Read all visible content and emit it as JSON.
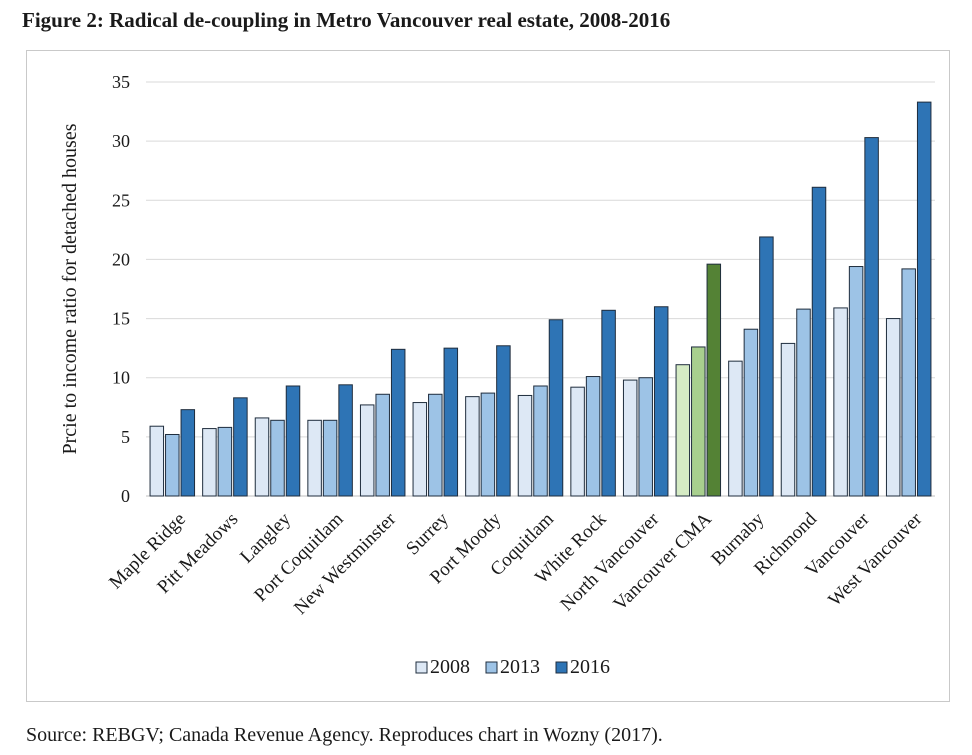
{
  "figure": {
    "title": "Figure 2: Radical de-coupling in Metro Vancouver real estate, 2008-2016",
    "source": "Source: REBGV; Canada Revenue Agency. Reproduces chart in Wozny (2017)."
  },
  "chart_data": {
    "type": "bar",
    "ylabel": "Prcie to income ratio for detached houses",
    "xlabel": "",
    "ylim": [
      0,
      35
    ],
    "yticks": [
      0,
      5,
      10,
      15,
      20,
      25,
      30,
      35
    ],
    "grid": true,
    "legend_position": "bottom",
    "categories": [
      "Maple Ridge",
      "Pitt Meadows",
      "Langley",
      "Port Coquitlam",
      "New Westminster",
      "Surrey",
      "Port Moody",
      "Coquitlam",
      "White Rock",
      "North Vancouver",
      "Vancouver CMA",
      "Burnaby",
      "Richmond",
      "Vancouver",
      "West Vancouver"
    ],
    "series": [
      {
        "name": "2008",
        "color": "#dde8f5",
        "highlight_color": "#d5ebc4",
        "values": [
          5.9,
          5.7,
          6.6,
          6.4,
          7.7,
          7.9,
          8.4,
          8.5,
          9.2,
          9.8,
          11.1,
          11.4,
          12.9,
          15.9,
          15.0
        ]
      },
      {
        "name": "2013",
        "color": "#9dc3e6",
        "highlight_color": "#a8cf8e",
        "values": [
          5.2,
          5.8,
          6.4,
          6.4,
          8.6,
          8.6,
          8.7,
          9.3,
          10.1,
          10.0,
          12.6,
          14.1,
          15.8,
          19.4,
          19.2
        ]
      },
      {
        "name": "2016",
        "color": "#2e74b5",
        "highlight_color": "#548235",
        "values": [
          7.3,
          8.3,
          9.3,
          9.4,
          12.4,
          12.5,
          12.7,
          14.9,
          15.7,
          16.0,
          19.6,
          21.9,
          26.1,
          30.3,
          33.3
        ]
      }
    ],
    "highlight_category": "Vancouver CMA"
  }
}
